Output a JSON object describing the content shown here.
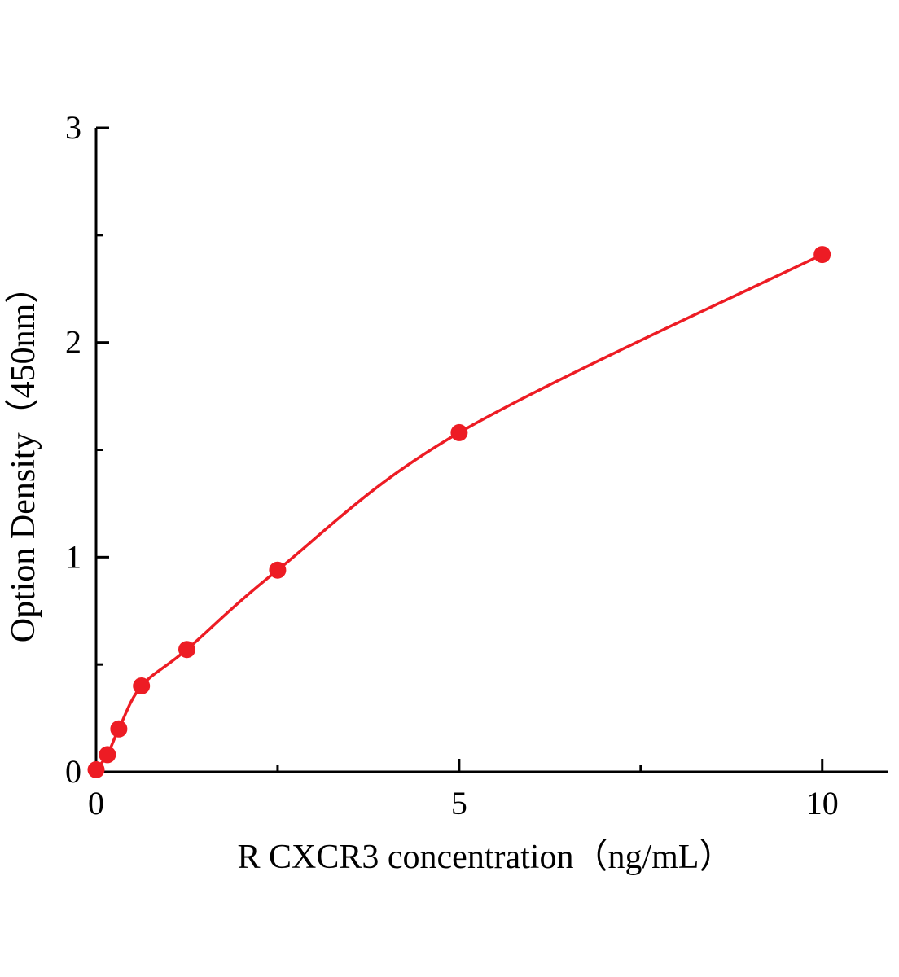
{
  "chart_data": {
    "type": "scatter",
    "title": "",
    "xlabel": "R CXCR3  concentration（ng/mL）",
    "ylabel": "Option Density（450nm）",
    "x": [
      0,
      0.156,
      0.313,
      0.625,
      1.25,
      2.5,
      5,
      10
    ],
    "y": [
      0.01,
      0.08,
      0.2,
      0.4,
      0.57,
      0.94,
      1.58,
      2.41
    ],
    "xlim": [
      0,
      10.9
    ],
    "ylim": [
      0,
      3
    ],
    "xticks": [
      0,
      5,
      10
    ],
    "yticks": [
      0,
      1,
      2,
      3
    ],
    "x_minor_ticks": [
      2.5,
      7.5
    ],
    "y_minor_ticks": [
      0.5,
      1.5,
      2.5
    ],
    "grid": false,
    "legend_position": "none",
    "line_color": "#ed1c24",
    "marker_color": "#ed1c24",
    "axis_color": "#000000",
    "curve_style": "smooth-fit-through-points",
    "marker_radius_px": 10.5
  }
}
